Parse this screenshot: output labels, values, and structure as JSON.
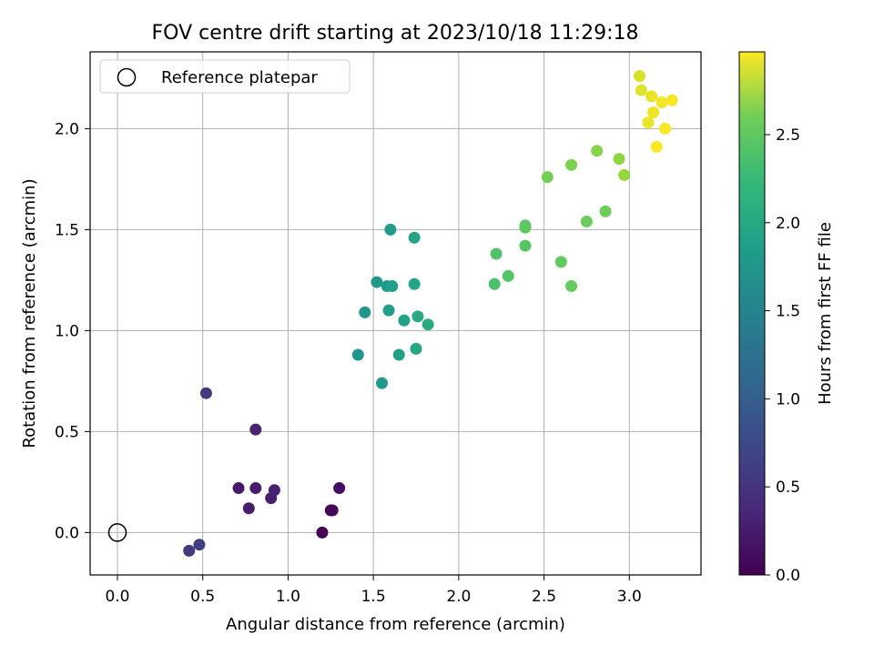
{
  "chart_data": {
    "type": "scatter",
    "title": "FOV centre drift starting at 2023/10/18 11:29:18",
    "xlabel": "Angular distance from reference (arcmin)",
    "ylabel": "Rotation from reference (arcmin)",
    "xlim": [
      -0.16,
      3.42
    ],
    "ylim": [
      -0.21,
      2.38
    ],
    "x_ticks": [
      0.0,
      0.5,
      1.0,
      1.5,
      2.0,
      2.5,
      3.0
    ],
    "x_tick_labels": [
      "0.0",
      "0.5",
      "1.0",
      "1.5",
      "2.0",
      "2.5",
      "3.0"
    ],
    "y_ticks": [
      0.0,
      0.5,
      1.0,
      1.5,
      2.0
    ],
    "y_tick_labels": [
      "0.0",
      "0.5",
      "1.0",
      "1.5",
      "2.0"
    ],
    "grid": true,
    "legend": {
      "placement": "top-left",
      "entries": [
        "Reference platepar"
      ]
    },
    "reference_point": {
      "x": 0.0,
      "y": 0.0,
      "name": "Reference platepar"
    },
    "colorbar": {
      "label": "Hours from first FF file",
      "colormap": "viridis",
      "range": [
        0.0,
        2.97
      ],
      "ticks": [
        0.0,
        0.5,
        1.0,
        1.5,
        2.0,
        2.5
      ],
      "tick_labels": [
        "0.0",
        "0.5",
        "1.0",
        "1.5",
        "2.0",
        "2.5"
      ]
    },
    "points": [
      {
        "x": 1.2,
        "y": 0.0,
        "c": 0.0
      },
      {
        "x": 1.25,
        "y": 0.11,
        "c": 0.03
      },
      {
        "x": 1.26,
        "y": 0.11,
        "c": 0.06
      },
      {
        "x": 1.3,
        "y": 0.22,
        "c": 0.1
      },
      {
        "x": 0.71,
        "y": 0.22,
        "c": 0.2
      },
      {
        "x": 0.81,
        "y": 0.22,
        "c": 0.22
      },
      {
        "x": 0.77,
        "y": 0.12,
        "c": 0.24
      },
      {
        "x": 0.9,
        "y": 0.17,
        "c": 0.26
      },
      {
        "x": 0.92,
        "y": 0.21,
        "c": 0.28
      },
      {
        "x": 0.81,
        "y": 0.51,
        "c": 0.3
      },
      {
        "x": 0.52,
        "y": 0.69,
        "c": 0.5
      },
      {
        "x": 0.42,
        "y": -0.09,
        "c": 0.52
      },
      {
        "x": 0.48,
        "y": -0.06,
        "c": 0.55
      },
      {
        "x": 1.41,
        "y": 0.88,
        "c": 1.55
      },
      {
        "x": 1.45,
        "y": 1.09,
        "c": 1.57
      },
      {
        "x": 1.52,
        "y": 1.24,
        "c": 1.58
      },
      {
        "x": 1.55,
        "y": 0.74,
        "c": 1.6
      },
      {
        "x": 1.58,
        "y": 1.22,
        "c": 1.62
      },
      {
        "x": 1.6,
        "y": 1.5,
        "c": 1.64
      },
      {
        "x": 1.59,
        "y": 1.1,
        "c": 1.66
      },
      {
        "x": 1.61,
        "y": 1.22,
        "c": 1.67
      },
      {
        "x": 1.65,
        "y": 0.88,
        "c": 1.69
      },
      {
        "x": 1.68,
        "y": 1.05,
        "c": 1.71
      },
      {
        "x": 1.74,
        "y": 1.46,
        "c": 1.73
      },
      {
        "x": 1.74,
        "y": 1.23,
        "c": 1.74
      },
      {
        "x": 1.75,
        "y": 0.91,
        "c": 1.76
      },
      {
        "x": 1.76,
        "y": 1.07,
        "c": 1.78
      },
      {
        "x": 1.82,
        "y": 1.03,
        "c": 1.8
      },
      {
        "x": 2.21,
        "y": 1.23,
        "c": 2.12
      },
      {
        "x": 2.22,
        "y": 1.38,
        "c": 2.14
      },
      {
        "x": 2.29,
        "y": 1.27,
        "c": 2.16
      },
      {
        "x": 2.39,
        "y": 1.42,
        "c": 2.18
      },
      {
        "x": 2.39,
        "y": 1.52,
        "c": 2.2
      },
      {
        "x": 2.39,
        "y": 1.51,
        "c": 2.21
      },
      {
        "x": 2.6,
        "y": 1.34,
        "c": 2.24
      },
      {
        "x": 2.66,
        "y": 1.22,
        "c": 2.26
      },
      {
        "x": 2.75,
        "y": 1.54,
        "c": 2.28
      },
      {
        "x": 2.86,
        "y": 1.59,
        "c": 2.3
      },
      {
        "x": 2.52,
        "y": 1.76,
        "c": 2.34
      },
      {
        "x": 2.66,
        "y": 1.82,
        "c": 2.38
      },
      {
        "x": 2.81,
        "y": 1.89,
        "c": 2.42
      },
      {
        "x": 2.94,
        "y": 1.85,
        "c": 2.46
      },
      {
        "x": 2.97,
        "y": 1.77,
        "c": 2.5
      },
      {
        "x": 3.06,
        "y": 2.26,
        "c": 2.8
      },
      {
        "x": 3.07,
        "y": 2.19,
        "c": 2.83
      },
      {
        "x": 3.13,
        "y": 2.16,
        "c": 2.86
      },
      {
        "x": 3.11,
        "y": 2.03,
        "c": 2.88
      },
      {
        "x": 3.14,
        "y": 2.08,
        "c": 2.9
      },
      {
        "x": 3.19,
        "y": 2.13,
        "c": 2.92
      },
      {
        "x": 3.25,
        "y": 2.14,
        "c": 2.94
      },
      {
        "x": 3.21,
        "y": 2.0,
        "c": 2.95
      },
      {
        "x": 3.16,
        "y": 1.91,
        "c": 2.97
      }
    ]
  }
}
